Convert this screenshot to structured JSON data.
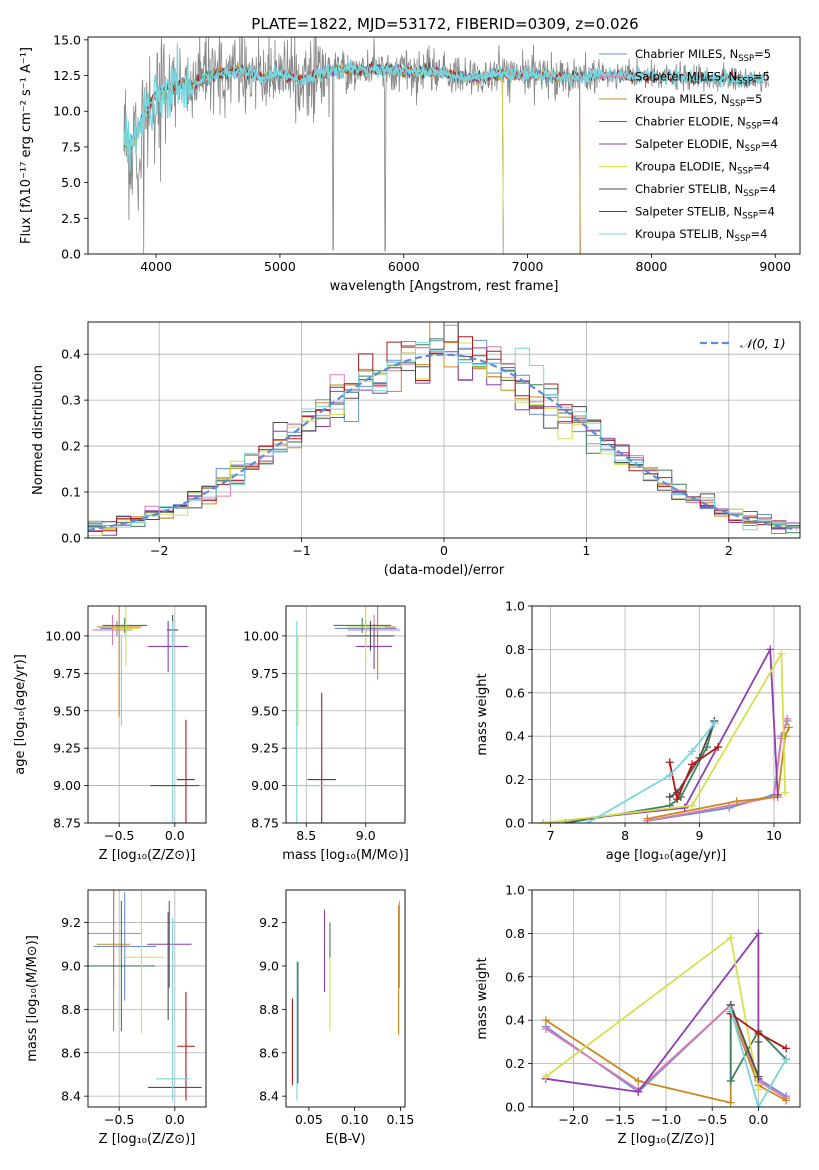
{
  "figure": {
    "title": "PLATE=1822, MJD=53172, FIBERID=0309, z=0.026",
    "series_colors": [
      "#6b8fd6",
      "#e07bb0",
      "#c88a1e",
      "#3f7f5c",
      "#8e3fb0",
      "#d6e04a",
      "#505050",
      "#b01818",
      "#78d6dc"
    ]
  },
  "chart_data": [
    {
      "id": "spectrum",
      "type": "line",
      "title": "PLATE=1822, MJD=53172, FIBERID=0309, z=0.026",
      "xlabel": "wavelength [Angstrom, rest frame]",
      "ylabel": "Flux [fλ10⁻¹⁷ erg cm⁻² s⁻¹ A⁻¹]",
      "xlim": [
        3450,
        9200
      ],
      "ylim": [
        0,
        15.2
      ],
      "xticks": [
        4000,
        5000,
        6000,
        7000,
        8000,
        9000
      ],
      "yticks": [
        0.0,
        2.5,
        5.0,
        7.5,
        10.0,
        12.5,
        15.0
      ],
      "legend_position": "top-right",
      "grid": false,
      "observed_series": "grey",
      "observed_dropouts": [
        {
          "x": 3900,
          "y": 0.0
        },
        {
          "x": 5430,
          "y": 0.3
        },
        {
          "x": 5850,
          "y": 0.2
        }
      ],
      "series": [
        {
          "name": "Chabrier MILES, N_SSP=5",
          "range": [
            3740,
            7420
          ]
        },
        {
          "name": "Salpeter MILES, N_SSP=5",
          "range": [
            3740,
            7420
          ]
        },
        {
          "name": "Kroupa MILES, N_SSP=5",
          "range": [
            3740,
            7420
          ]
        },
        {
          "name": "Chabrier ELODIE, N_SSP=4",
          "range": [
            3740,
            6800
          ]
        },
        {
          "name": "Salpeter ELODIE, N_SSP=4",
          "range": [
            3740,
            6800
          ]
        },
        {
          "name": "Kroupa ELODIE, N_SSP=4",
          "range": [
            3740,
            6800
          ]
        },
        {
          "name": "Chabrier STELIB, N_SSP=4",
          "range": [
            3740,
            8900
          ]
        },
        {
          "name": "Salpeter STELIB, N_SSP=4",
          "range": [
            3740,
            8900
          ]
        },
        {
          "name": "Kroupa STELIB, N_SSP=4",
          "range": [
            3740,
            8900
          ]
        }
      ],
      "template_curve": {
        "x": [
          3740,
          3800,
          3900,
          4000,
          4100,
          4200,
          4300,
          4400,
          4500,
          4700,
          4861,
          5000,
          5175,
          5300,
          5500,
          5800,
          6000,
          6300,
          6563,
          6800,
          7000,
          7200,
          7400,
          7600,
          7800,
          8000,
          8200,
          8400,
          8600,
          8800,
          8900
        ],
        "y": [
          8.0,
          7.6,
          9.8,
          11.2,
          11.6,
          12.0,
          11.8,
          12.4,
          12.6,
          12.9,
          12.3,
          12.6,
          12.2,
          12.6,
          12.9,
          12.9,
          12.8,
          12.7,
          12.3,
          12.6,
          12.5,
          12.5,
          12.4,
          12.5,
          12.5,
          12.4,
          12.4,
          12.2,
          12.3,
          12.2,
          12.3
        ]
      }
    },
    {
      "id": "residuals",
      "type": "histogram",
      "xlabel": "(data-model)/error",
      "ylabel": "Normed distribution",
      "xlim": [
        -2.5,
        2.5
      ],
      "ylim": [
        0,
        0.47
      ],
      "xticks": [
        -2,
        -1,
        0,
        1,
        2
      ],
      "yticks": [
        0.0,
        0.1,
        0.2,
        0.3,
        0.4
      ],
      "grid": true,
      "bin_width": 0.1,
      "legend_position": "top-right",
      "reference_curve": {
        "name": "𝒩(0, 1)",
        "mean": 0,
        "sigma": 1,
        "style": "dashed",
        "color": "#5a8fd6"
      }
    },
    {
      "id": "age-vs-Z",
      "type": "errorbar",
      "xlabel": "Z [log₁₀(Z/Z⊙)]",
      "ylabel": "age  [log₁₀(age/yr)]",
      "xlim": [
        -0.78,
        0.28
      ],
      "ylim": [
        8.75,
        10.2
      ],
      "xticks": [
        -0.5,
        0.0
      ],
      "yticks": [
        8.75,
        9.0,
        9.25,
        9.5,
        9.75,
        10.0
      ],
      "grid": true,
      "points": [
        {
          "x": -0.52,
          "xerr": 0.15,
          "y": 10.05,
          "yerr": 0.05,
          "c": 0
        },
        {
          "x": -0.56,
          "xerr": 0.18,
          "y": 10.04,
          "yerr": 0.1,
          "c": 1
        },
        {
          "x": -0.5,
          "xerr": 0.2,
          "y": 10.06,
          "yerr": 0.6,
          "c": 2
        },
        {
          "x": -0.45,
          "xerr": 0.2,
          "y": 10.07,
          "yerr": 0.05,
          "c": 3
        },
        {
          "x": -0.06,
          "xerr": 0.18,
          "y": 9.93,
          "yerr": 0.17,
          "c": 4
        },
        {
          "x": -0.44,
          "xerr": 0.12,
          "y": 10.05,
          "yerr": 0.25,
          "c": 5
        },
        {
          "x": -0.02,
          "xerr": 0.05,
          "y": 10.04,
          "yerr": 0.1,
          "c": 6
        },
        {
          "x": 0.1,
          "xerr": 0.08,
          "y": 9.04,
          "yerr": 0.4,
          "c": 7
        },
        {
          "x": -0.02,
          "xerr": 0.14,
          "y": 9.0,
          "yerr": 1.1,
          "c": 8
        },
        {
          "x": 0.0,
          "xerr": 0.22,
          "y": 9.0,
          "yerr": 0.0,
          "c": 6
        },
        {
          "x": -0.48,
          "xerr": 0.0,
          "y": 9.7,
          "yerr": 0.3,
          "c": 8
        }
      ]
    },
    {
      "id": "age-vs-mass",
      "type": "errorbar",
      "xlabel": "mass [log₁₀(M/M⊙)]",
      "ylabel": "",
      "xlim": [
        8.33,
        9.33
      ],
      "ylim": [
        8.75,
        10.2
      ],
      "xticks": [
        8.5,
        9.0
      ],
      "yticks": [
        8.75,
        9.0,
        9.25,
        9.5,
        9.75,
        10.0
      ],
      "grid": true,
      "points": [
        {
          "x": 9.0,
          "xerr": 0.26,
          "y": 10.05,
          "yerr": 0.05,
          "c": 0
        },
        {
          "x": 9.07,
          "xerr": 0.22,
          "y": 10.04,
          "yerr": 0.1,
          "c": 1
        },
        {
          "x": 9.1,
          "xerr": 0.15,
          "y": 10.06,
          "yerr": 0.35,
          "c": 2
        },
        {
          "x": 8.97,
          "xerr": 0.24,
          "y": 10.07,
          "yerr": 0.05,
          "c": 3
        },
        {
          "x": 9.07,
          "xerr": 0.15,
          "y": 9.93,
          "yerr": 0.15,
          "c": 4
        },
        {
          "x": 9.0,
          "xerr": 0.16,
          "y": 10.06,
          "yerr": 0.25,
          "c": 5
        },
        {
          "x": 9.04,
          "xerr": 0.2,
          "y": 10.0,
          "yerr": 0.1,
          "c": 6
        },
        {
          "x": 8.63,
          "xerr": 0.12,
          "y": 9.04,
          "yerr": 0.58,
          "c": 7
        },
        {
          "x": 8.42,
          "xerr": 0.0,
          "y": 9.0,
          "yerr": 1.1,
          "c": 8
        },
        {
          "x": 8.7,
          "xerr": 0.3,
          "y": 9.0,
          "yerr": 0.0,
          "c": 8
        },
        {
          "x": 8.43,
          "xerr": 0.0,
          "y": 9.7,
          "yerr": 0.3,
          "c": 5
        }
      ]
    },
    {
      "id": "weight-vs-age",
      "type": "line",
      "xlabel": "age  [log₁₀(age/yr)]",
      "ylabel": "mass weight",
      "xlim": [
        6.75,
        10.35
      ],
      "ylim": [
        0,
        1.0
      ],
      "xticks": [
        7,
        8,
        9,
        10
      ],
      "yticks": [
        0.0,
        0.2,
        0.4,
        0.6,
        0.8,
        1.0
      ],
      "grid": true,
      "series": [
        {
          "c": 0,
          "x": [
            8.3,
            9.4,
            10.0,
            10.1,
            10.18
          ],
          "y": [
            0.01,
            0.07,
            0.13,
            0.4,
            0.47
          ]
        },
        {
          "c": 1,
          "x": [
            8.3,
            9.4,
            10.0,
            10.1,
            10.18
          ],
          "y": [
            0.01,
            0.08,
            0.12,
            0.39,
            0.48
          ]
        },
        {
          "c": 2,
          "x": [
            8.3,
            9.5,
            10.05,
            10.15,
            10.2
          ],
          "y": [
            0.02,
            0.1,
            0.12,
            0.4,
            0.44
          ]
        },
        {
          "c": 3,
          "x": [
            7.2,
            8.6,
            8.75,
            9.1,
            9.2
          ],
          "y": [
            0.0,
            0.08,
            0.12,
            0.35,
            0.47
          ]
        },
        {
          "c": 4,
          "x": [
            6.9,
            8.8,
            9.95,
            10.05
          ],
          "y": [
            0.0,
            0.07,
            0.8,
            0.13
          ]
        },
        {
          "c": 5,
          "x": [
            6.9,
            8.9,
            10.1,
            10.15
          ],
          "y": [
            0.0,
            0.08,
            0.78,
            0.14
          ]
        },
        {
          "c": 6,
          "x": [
            8.6,
            8.7,
            9.0,
            9.2
          ],
          "y": [
            0.12,
            0.14,
            0.3,
            0.47
          ]
        },
        {
          "c": 7,
          "x": [
            8.6,
            8.7,
            8.9,
            9.25
          ],
          "y": [
            0.28,
            0.11,
            0.27,
            0.35
          ]
        },
        {
          "c": 8,
          "x": [
            7.5,
            8.6,
            8.9,
            9.2
          ],
          "y": [
            0.0,
            0.22,
            0.33,
            0.46
          ]
        }
      ]
    },
    {
      "id": "mass-vs-Z",
      "type": "errorbar",
      "xlabel": "Z [log₁₀(Z/Z⊙)]",
      "ylabel": "mass [log₁₀(M/M⊙)]",
      "xlim": [
        -0.78,
        0.28
      ],
      "ylim": [
        8.35,
        9.35
      ],
      "xticks": [
        -0.5,
        0.0
      ],
      "yticks": [
        8.4,
        8.6,
        8.8,
        9.0,
        9.2
      ],
      "grid": true,
      "points": [
        {
          "x": -0.45,
          "xerr": 0.28,
          "y": 9.09,
          "yerr": 0.25,
          "c": 0
        },
        {
          "x": -0.55,
          "xerr": 0.25,
          "y": 9.15,
          "yerr": 0.25,
          "c": 1
        },
        {
          "x": -0.55,
          "xerr": 0.15,
          "y": 9.1,
          "yerr": 0.4,
          "c": 2
        },
        {
          "x": -0.48,
          "xerr": 0.3,
          "y": 9.0,
          "yerr": 0.3,
          "c": 3
        },
        {
          "x": -0.05,
          "xerr": 0.2,
          "y": 9.1,
          "yerr": 0.2,
          "c": 4
        },
        {
          "x": -0.3,
          "xerr": 0.2,
          "y": 9.04,
          "yerr": 0.35,
          "c": 5
        },
        {
          "x": -0.06,
          "xerr": 0.0,
          "y": 9.0,
          "yerr": 0.25,
          "c": 6
        },
        {
          "x": 0.1,
          "xerr": 0.08,
          "y": 8.63,
          "yerr": 0.25,
          "c": 7
        },
        {
          "x": -0.02,
          "xerr": 0.15,
          "y": 8.48,
          "yerr": 0.0,
          "c": 8
        },
        {
          "x": 0.0,
          "xerr": 0.24,
          "y": 8.44,
          "yerr": 0.0,
          "c": 6
        },
        {
          "x": -0.02,
          "xerr": 0.0,
          "y": 8.8,
          "yerr": 0.42,
          "c": 8
        }
      ]
    },
    {
      "id": "mass-vs-EBV",
      "type": "errorbar",
      "xlabel": "E(B-V)",
      "ylabel": "",
      "xlim": [
        0.025,
        0.155
      ],
      "ylim": [
        8.35,
        9.35
      ],
      "xticks": [
        0.05,
        0.1,
        0.15
      ],
      "yticks": [
        8.4,
        8.6,
        8.8,
        9.0,
        9.2
      ],
      "grid": false,
      "points": [
        {
          "x": 0.032,
          "xerr": 0.0,
          "y": 8.65,
          "yerr": 0.2,
          "c": 7
        },
        {
          "x": 0.037,
          "xerr": 0.0,
          "y": 8.7,
          "yerr": 0.32,
          "c": 8
        },
        {
          "x": 0.038,
          "xerr": 0.0,
          "y": 8.74,
          "yerr": 0.28,
          "c": 6
        },
        {
          "x": 0.067,
          "xerr": 0.0,
          "y": 9.07,
          "yerr": 0.19,
          "c": 4
        },
        {
          "x": 0.073,
          "xerr": 0.0,
          "y": 8.88,
          "yerr": 0.18,
          "c": 5
        },
        {
          "x": 0.073,
          "xerr": 0.0,
          "y": 9.12,
          "yerr": 0.08,
          "c": 3
        },
        {
          "x": 0.148,
          "xerr": 0.0,
          "y": 8.98,
          "yerr": 0.3,
          "c": 2
        },
        {
          "x": 0.149,
          "xerr": 0.0,
          "y": 9.1,
          "yerr": 0.2,
          "c": 1
        }
      ]
    },
    {
      "id": "weight-vs-Z",
      "type": "line",
      "xlabel": "Z [log₁₀(Z/Z⊙)]",
      "ylabel": "mass weight",
      "xlim": [
        -2.45,
        0.45
      ],
      "ylim": [
        0,
        1.0
      ],
      "xticks": [
        -2.0,
        -1.5,
        -1.0,
        -0.5,
        0.0
      ],
      "yticks": [
        0.0,
        0.2,
        0.4,
        0.6,
        0.8,
        1.0
      ],
      "grid": true,
      "series": [
        {
          "c": 0,
          "x": [
            -2.3,
            -1.3,
            -0.3,
            0.0,
            0.3
          ],
          "y": [
            0.37,
            0.07,
            0.47,
            0.13,
            0.05
          ]
        },
        {
          "c": 1,
          "x": [
            -2.3,
            -1.3,
            -0.3,
            0.0,
            0.3
          ],
          "y": [
            0.36,
            0.08,
            0.47,
            0.12,
            0.04
          ]
        },
        {
          "c": 2,
          "x": [
            -2.3,
            -1.3,
            -0.3,
            -0.3,
            0.0,
            0.3
          ],
          "y": [
            0.4,
            0.12,
            0.02,
            0.44,
            0.1,
            0.03
          ]
        },
        {
          "c": 3,
          "x": [
            -0.3,
            -0.3,
            0.0,
            0.3
          ],
          "y": [
            0.47,
            0.12,
            0.35,
            0.22
          ]
        },
        {
          "c": 4,
          "x": [
            -2.3,
            -1.3,
            0.0,
            0.0
          ],
          "y": [
            0.13,
            0.07,
            0.8,
            0.13
          ]
        },
        {
          "c": 5,
          "x": [
            -2.3,
            -0.3,
            0.0
          ],
          "y": [
            0.14,
            0.78,
            0.08
          ]
        },
        {
          "c": 6,
          "x": [
            -0.3,
            0.0,
            0.0
          ],
          "y": [
            0.47,
            0.14,
            0.3
          ]
        },
        {
          "c": 7,
          "x": [
            -0.3,
            0.0,
            0.3
          ],
          "y": [
            0.43,
            0.34,
            0.27
          ]
        },
        {
          "c": 8,
          "x": [
            -0.3,
            0.0,
            0.3
          ],
          "y": [
            0.45,
            0.0,
            0.22
          ]
        }
      ]
    }
  ]
}
